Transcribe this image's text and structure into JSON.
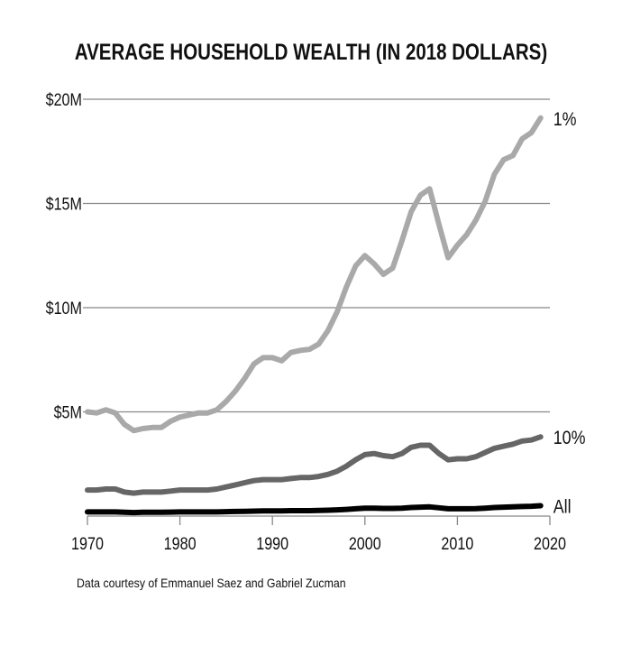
{
  "chart_data": {
    "type": "line",
    "title": "AVERAGE HOUSEHOLD WEALTH (IN 2018 DOLLARS)",
    "source_note": "Data courtesy of Emmanuel Saez and Gabriel Zucman",
    "xlim": [
      1970,
      2020
    ],
    "ylim": [
      0,
      20
    ],
    "x_ticks": [
      1970,
      1980,
      1990,
      2000,
      2010,
      2020
    ],
    "y_ticks": [
      {
        "value": 5,
        "label": "$5M"
      },
      {
        "value": 10,
        "label": "$10M"
      },
      {
        "value": 15,
        "label": "$15M"
      },
      {
        "value": 20,
        "label": "$20M"
      }
    ],
    "grid": "horizontal",
    "x": [
      1970,
      1971,
      1972,
      1973,
      1974,
      1975,
      1976,
      1977,
      1978,
      1979,
      1980,
      1981,
      1982,
      1983,
      1984,
      1985,
      1986,
      1987,
      1988,
      1989,
      1990,
      1991,
      1992,
      1993,
      1994,
      1995,
      1996,
      1997,
      1998,
      1999,
      2000,
      2001,
      2002,
      2003,
      2004,
      2005,
      2006,
      2007,
      2008,
      2009,
      2010,
      2011,
      2012,
      2013,
      2014,
      2015,
      2016,
      2017,
      2018,
      2019
    ],
    "series": [
      {
        "name": "1%",
        "color": "#a9a9a9",
        "values": [
          5.0,
          4.95,
          5.1,
          4.95,
          4.4,
          4.1,
          4.2,
          4.25,
          4.25,
          4.55,
          4.75,
          4.85,
          4.95,
          4.95,
          5.1,
          5.5,
          6.0,
          6.6,
          7.3,
          7.6,
          7.6,
          7.45,
          7.85,
          7.95,
          8.0,
          8.25,
          8.9,
          9.8,
          11.0,
          12.0,
          12.5,
          12.1,
          11.6,
          11.9,
          13.2,
          14.6,
          15.4,
          15.7,
          14.0,
          12.4,
          13.0,
          13.5,
          14.2,
          15.1,
          16.4,
          17.1,
          17.3,
          18.1,
          18.4,
          19.1
        ]
      },
      {
        "name": "10%",
        "color": "#666666",
        "values": [
          1.25,
          1.25,
          1.3,
          1.3,
          1.15,
          1.1,
          1.15,
          1.15,
          1.15,
          1.2,
          1.25,
          1.25,
          1.25,
          1.25,
          1.3,
          1.4,
          1.5,
          1.6,
          1.7,
          1.75,
          1.75,
          1.75,
          1.8,
          1.85,
          1.85,
          1.9,
          2.0,
          2.15,
          2.4,
          2.7,
          2.95,
          3.0,
          2.9,
          2.85,
          3.0,
          3.3,
          3.4,
          3.4,
          3.0,
          2.7,
          2.75,
          2.75,
          2.85,
          3.05,
          3.25,
          3.35,
          3.45,
          3.6,
          3.65,
          3.8
        ]
      },
      {
        "name": "All",
        "color": "#000000",
        "values": [
          0.2,
          0.2,
          0.2,
          0.2,
          0.18,
          0.17,
          0.18,
          0.18,
          0.18,
          0.19,
          0.2,
          0.2,
          0.2,
          0.2,
          0.2,
          0.21,
          0.22,
          0.23,
          0.24,
          0.25,
          0.25,
          0.25,
          0.26,
          0.26,
          0.26,
          0.27,
          0.28,
          0.3,
          0.32,
          0.35,
          0.38,
          0.38,
          0.37,
          0.37,
          0.38,
          0.41,
          0.43,
          0.44,
          0.4,
          0.35,
          0.35,
          0.35,
          0.36,
          0.38,
          0.41,
          0.43,
          0.44,
          0.46,
          0.47,
          0.5
        ]
      }
    ]
  }
}
